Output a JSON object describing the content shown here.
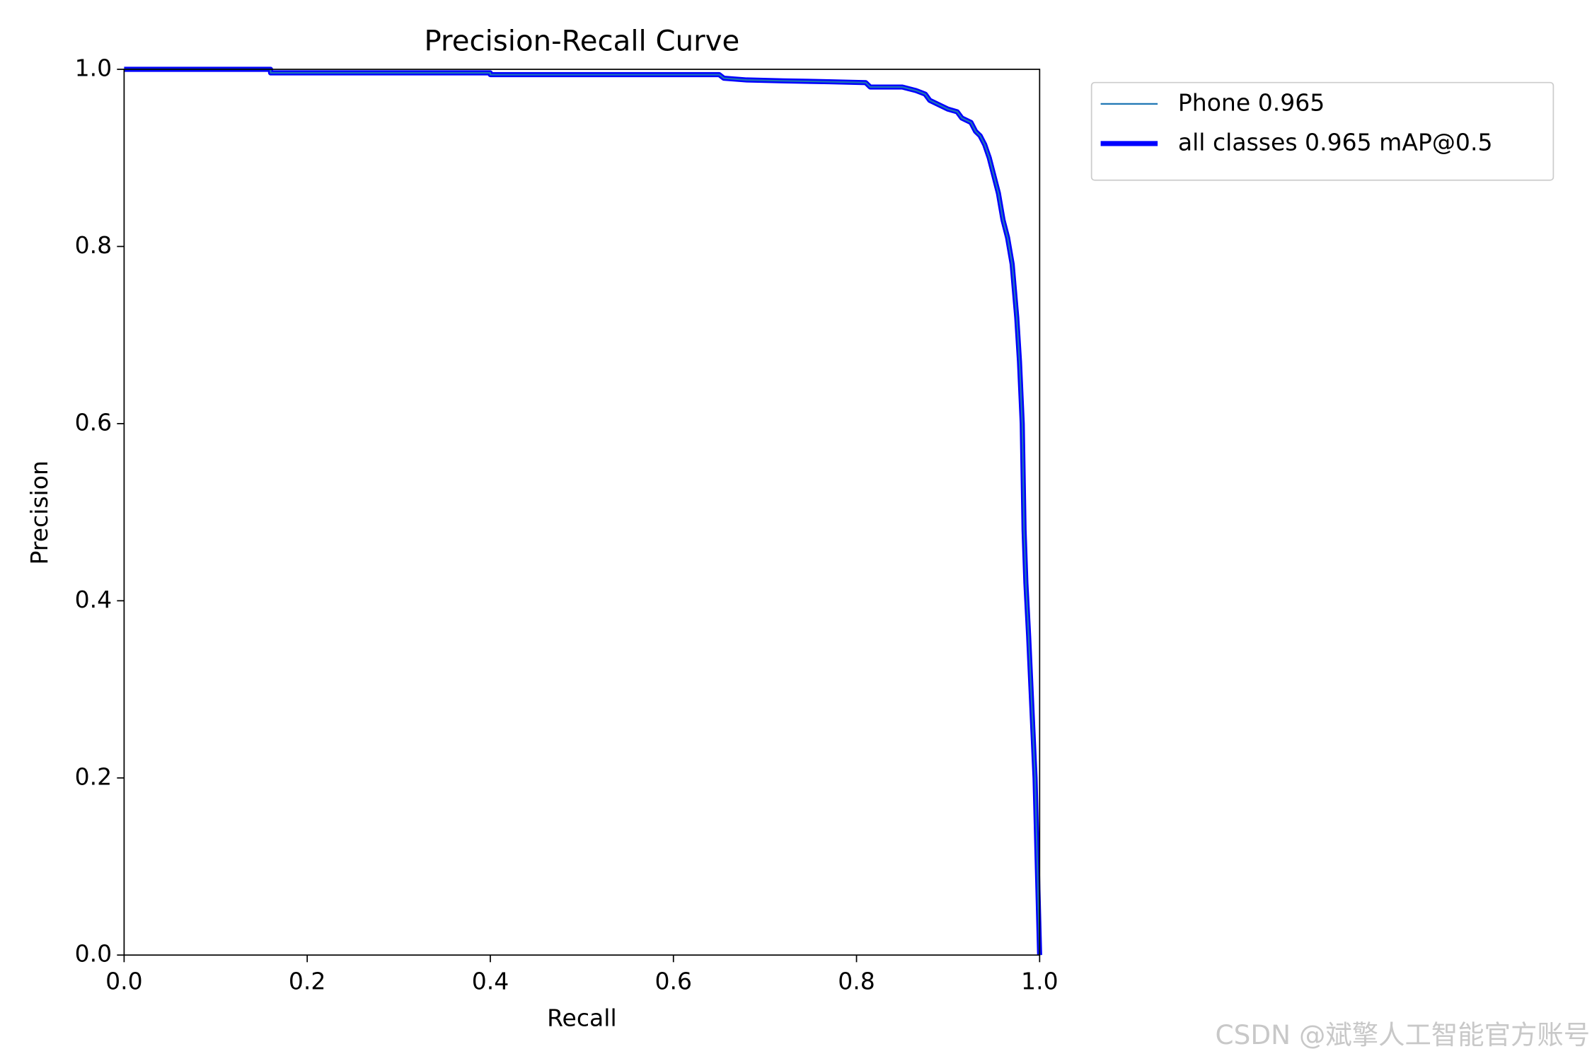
{
  "chart_data": {
    "type": "line",
    "title": "Precision-Recall Curve",
    "x_label": "Recall",
    "y_label": "Precision",
    "xlim": [
      0,
      1
    ],
    "ylim": [
      0,
      1
    ],
    "xticks": [
      {
        "value": 0,
        "label": "0.0"
      },
      0.2,
      0.4,
      0.6,
      0.8,
      {
        "value": 1,
        "label": "1.0"
      }
    ],
    "yticks": [
      {
        "value": 0,
        "label": "0.0"
      },
      0.2,
      0.4,
      0.6,
      0.8,
      {
        "value": 1,
        "label": "1.0"
      }
    ],
    "grid": false,
    "legend": "outside upper right",
    "x": [
      0,
      0.16,
      0.16,
      0.4,
      0.4,
      0.65,
      0.655,
      0.68,
      0.72,
      0.77,
      0.81,
      0.815,
      0.85,
      0.865,
      0.875,
      0.88,
      0.89,
      0.9,
      0.91,
      0.915,
      0.925,
      0.93,
      0.935,
      0.94,
      0.945,
      0.95,
      0.955,
      0.96,
      0.965,
      0.97,
      0.975,
      0.978,
      0.981,
      0.983,
      0.985,
      0.988,
      0.995,
      1.0
    ],
    "series": [
      {
        "name": "Phone 0.965",
        "color": "#1f77b4",
        "values": [
          1.0,
          1.0,
          0.996,
          0.996,
          0.994,
          0.994,
          0.99,
          0.988,
          0.987,
          0.986,
          0.985,
          0.98,
          0.98,
          0.976,
          0.972,
          0.965,
          0.96,
          0.955,
          0.952,
          0.945,
          0.94,
          0.93,
          0.925,
          0.915,
          0.9,
          0.88,
          0.86,
          0.83,
          0.81,
          0.78,
          0.72,
          0.67,
          0.6,
          0.48,
          0.42,
          0.36,
          0.2,
          0.0
        ]
      },
      {
        "name": "all classes 0.965 mAP@0.5",
        "color": "#0000ff",
        "values": [
          1.0,
          1.0,
          0.996,
          0.996,
          0.994,
          0.994,
          0.99,
          0.988,
          0.987,
          0.986,
          0.985,
          0.98,
          0.98,
          0.976,
          0.972,
          0.965,
          0.96,
          0.955,
          0.952,
          0.945,
          0.94,
          0.93,
          0.925,
          0.915,
          0.9,
          0.88,
          0.86,
          0.83,
          0.81,
          0.78,
          0.72,
          0.67,
          0.6,
          0.48,
          0.42,
          0.36,
          0.2,
          0.0
        ]
      }
    ]
  },
  "watermark": "CSDN @斌擎人工智能官方账号"
}
